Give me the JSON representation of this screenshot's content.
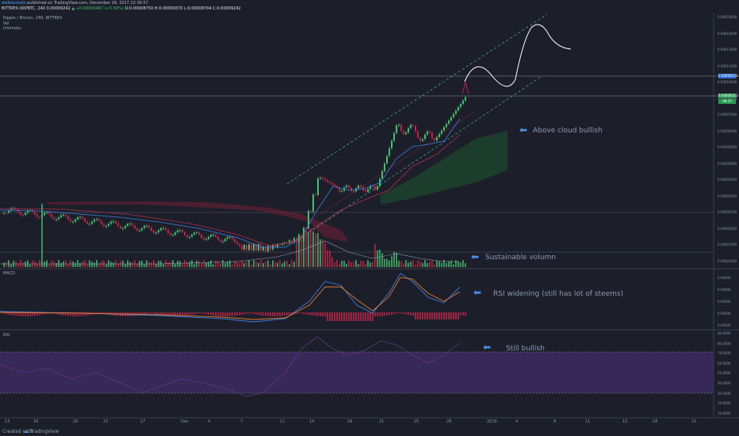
{
  "header": {
    "author": "elefeocondo",
    "published": "published on TradingView.com, December 28, 2017 22:36:57",
    "symbol": "BITTREX:XRPBTC, 240",
    "last": "0.00009242",
    "change": "▲ +0.00000487 (+5.56%)",
    "ohlc": "O:0.00008750 H:0.00009370 L:0.00008704 C:0.00009242"
  },
  "legend": {
    "title": "Ripple / Bitcoin, 240, BITTREX",
    "vol": "Vol",
    "ichimoku": "Ichimoku",
    "macd": "MACD",
    "rsi": "RSI"
  },
  "price_axis": {
    "labels": [
      "0.00018000",
      "0.00014000",
      "0.00013000",
      "0.00011000",
      "0.00010000",
      "0.00008000",
      "0.00007000",
      "0.00006000",
      "0.00005000",
      "0.00004000",
      "0.00003500",
      "0.00003000",
      "0.00002500",
      "0.00002000",
      "0.00001500",
      "0.00001000"
    ],
    "tag_top": "0.00009242",
    "tag_mid": "0.00009103",
    "tag_mid2": "08:37"
  },
  "macd_axis": {
    "labels": [
      "0.00000",
      "0.00000",
      "0.00000",
      "0.00000",
      "0.00000"
    ]
  },
  "rsi_axis": {
    "labels": [
      "90.0000",
      "80.0000",
      "70.0000",
      "60.0000",
      "50.0000",
      "40.0000",
      "30.0000",
      "20.0000",
      "10.0000"
    ]
  },
  "time_axis": {
    "labels": [
      "13",
      "16",
      "20",
      "23",
      "27",
      "Dec",
      "4",
      "7",
      "11",
      "14",
      "18",
      "21",
      "25",
      "28",
      "2018",
      "4",
      "8",
      "11",
      "15",
      "18",
      "22"
    ]
  },
  "annotations": {
    "above_cloud": "Above cloud bullish",
    "volume": "Sustainable volumn",
    "rsi_widening": "RSI widening (still has lot of steems)",
    "still_bullish": "Still bullish"
  },
  "footer": {
    "created_with": "Created with",
    "brand": "TradingView"
  },
  "colors": {
    "bg": "#1c1f2a",
    "up": "#3cc26d",
    "down": "#c2234a",
    "arrow": "#4d8fe6",
    "rsi_band": "#3d2a63"
  }
}
